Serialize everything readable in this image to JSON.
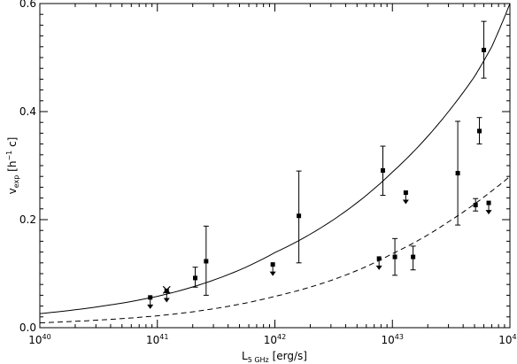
{
  "chart_data": {
    "type": "scatter",
    "title": "",
    "xlabel": {
      "main": "L",
      "subscript": "5 GHz",
      "units": "[erg/s]"
    },
    "ylabel": {
      "main": "v",
      "subscript": "exp",
      "units_pre": "[h",
      "units_exp": "−1",
      "units_post": " c]"
    },
    "x_scale": "log10",
    "xlim": [
      1e+40,
      1e+44
    ],
    "ylim": [
      0,
      0.6
    ],
    "x_ticks": [
      {
        "value": 1e+40,
        "base": "10",
        "exp": "40"
      },
      {
        "value": 1e+41,
        "base": "10",
        "exp": "41"
      },
      {
        "value": 1e+42,
        "base": "10",
        "exp": "42"
      },
      {
        "value": 1e+43,
        "base": "10",
        "exp": "43"
      },
      {
        "value": 1e+44,
        "base": "10",
        "exp": "44"
      }
    ],
    "y_ticks": [
      {
        "value": 0.0,
        "label": "0.0"
      },
      {
        "value": 0.2,
        "label": "0.2"
      },
      {
        "value": 0.4,
        "label": "0.4"
      },
      {
        "value": 0.6,
        "label": "0.6"
      }
    ],
    "grid": false,
    "legend": null,
    "points_with_errors": [
      {
        "x": 2.1e+41,
        "y": 0.092,
        "ylo": 0.075,
        "yhi": 0.112
      },
      {
        "x": 2.6e+41,
        "y": 0.123,
        "ylo": 0.06,
        "yhi": 0.188
      },
      {
        "x": 1.6e+42,
        "y": 0.207,
        "ylo": 0.12,
        "yhi": 0.29
      },
      {
        "x": 8.3e+42,
        "y": 0.291,
        "ylo": 0.245,
        "yhi": 0.336
      },
      {
        "x": 1.05e+43,
        "y": 0.131,
        "ylo": 0.097,
        "yhi": 0.165
      },
      {
        "x": 1.5e+43,
        "y": 0.131,
        "ylo": 0.107,
        "yhi": 0.151
      },
      {
        "x": 3.6e+43,
        "y": 0.286,
        "ylo": 0.19,
        "yhi": 0.382
      },
      {
        "x": 5.1e+43,
        "y": 0.227,
        "ylo": 0.216,
        "yhi": 0.239
      },
      {
        "x": 5.5e+43,
        "y": 0.364,
        "ylo": 0.34,
        "yhi": 0.389
      },
      {
        "x": 6e+43,
        "y": 0.514,
        "ylo": 0.462,
        "yhi": 0.567
      }
    ],
    "upper_limits": [
      {
        "x": 8.7e+40,
        "y": 0.056
      },
      {
        "x": 1.2e+41,
        "y": 0.068
      },
      {
        "x": 9.6e+41,
        "y": 0.117
      },
      {
        "x": 7.7e+42,
        "y": 0.128
      },
      {
        "x": 1.3e+43,
        "y": 0.25
      },
      {
        "x": 6.6e+43,
        "y": 0.231
      }
    ],
    "crossed_marker": {
      "x": 1.2e+41,
      "y": 0.07
    },
    "curves": [
      {
        "style": "solid",
        "x": [
          1e+40,
          1e+41,
          1e+42,
          1e+43,
          3e+43,
          5e+43,
          7e+43,
          1e+44
        ],
        "y": [
          0.026,
          0.058,
          0.139,
          0.288,
          0.4,
          0.465,
          0.52,
          0.6
        ]
      },
      {
        "style": "dashed",
        "x": [
          1e+40,
          1e+41,
          1e+42,
          1e+43,
          3e+43,
          5e+43,
          7e+43,
          1e+44
        ],
        "y": [
          0.009,
          0.022,
          0.058,
          0.137,
          0.196,
          0.229,
          0.253,
          0.28
        ]
      }
    ]
  }
}
